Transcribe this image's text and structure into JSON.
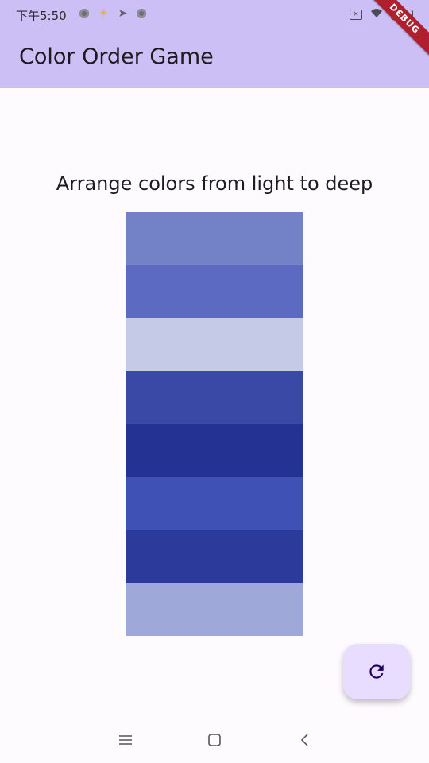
{
  "status_bar": {
    "time": "下午5:50",
    "icons_left": [
      "notification-dot-icon",
      "weather-sun-icon",
      "telegram-icon",
      "notification-dot-icon"
    ],
    "icons_right": [
      "sim-icon",
      "wifi-icon",
      "battery-icon"
    ]
  },
  "debug_banner": {
    "label": "DEBUG",
    "color": "#b01f2e"
  },
  "app_bar": {
    "title": "Color Order Game",
    "background": "#cbbff6"
  },
  "game": {
    "instruction": "Arrange colors from light to deep",
    "swatches": [
      {
        "color": "#7381c6"
      },
      {
        "color": "#5c6bc1"
      },
      {
        "color": "#c5cae6"
      },
      {
        "color": "#3a48a6"
      },
      {
        "color": "#243293"
      },
      {
        "color": "#3f51b5"
      },
      {
        "color": "#2c3a9b"
      },
      {
        "color": "#9ea8d9"
      }
    ]
  },
  "fab": {
    "icon": "refresh-icon",
    "background": "#e9ddff",
    "icon_color": "#21005d"
  },
  "nav_bar": {
    "buttons": [
      "menu-icon",
      "home-icon",
      "back-icon"
    ]
  }
}
